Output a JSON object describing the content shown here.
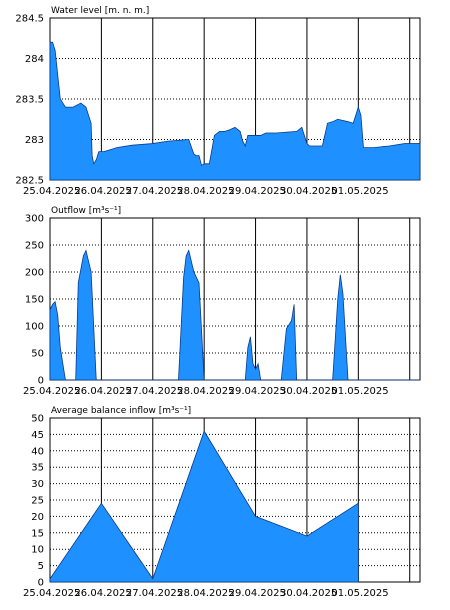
{
  "fill_color": "#1E90FF",
  "chart_data": [
    {
      "type": "area",
      "title": "Water level [m. n. m.]",
      "x_ticks": [
        "25.04.2025",
        "26.04.2025",
        "27.04.2025",
        "28.04.2025",
        "29.04.2025",
        "30.04.2025",
        "01.05.2025"
      ],
      "y_ticks": [
        "282.5",
        "283",
        "283.5",
        "284",
        "284.5"
      ],
      "ylim": [
        282.5,
        284.5
      ],
      "xlim": [
        0,
        7.2
      ],
      "grid": true,
      "x": [
        -0.2,
        0.05,
        0.1,
        0.2,
        0.3,
        0.45,
        0.6,
        0.7,
        0.8,
        0.82,
        0.85,
        0.9,
        0.95,
        1.05,
        1.3,
        1.6,
        2.0,
        2.3,
        2.7,
        2.8,
        2.85,
        2.9,
        2.95,
        3.0,
        3.1,
        3.2,
        3.3,
        3.4,
        3.5,
        3.6,
        3.7,
        3.75,
        3.8,
        3.85,
        4.0,
        4.1,
        4.2,
        4.4,
        4.8,
        4.9,
        5.0,
        5.05,
        5.1,
        5.3,
        5.4,
        5.5,
        5.6,
        5.8,
        5.9,
        6.0,
        6.05,
        6.1,
        6.3,
        6.6,
        6.9,
        7.0,
        7.2
      ],
      "y": [
        284.2,
        284.2,
        284.1,
        283.5,
        283.4,
        283.4,
        283.45,
        283.4,
        283.2,
        282.8,
        282.7,
        282.75,
        282.85,
        282.85,
        282.9,
        282.93,
        282.95,
        282.98,
        283.0,
        282.82,
        282.8,
        282.8,
        282.68,
        282.7,
        282.7,
        283.05,
        283.1,
        283.1,
        283.12,
        283.15,
        283.1,
        282.98,
        282.92,
        283.05,
        283.05,
        283.05,
        283.08,
        283.08,
        283.1,
        283.15,
        282.95,
        282.92,
        282.92,
        282.92,
        283.2,
        283.22,
        283.25,
        283.22,
        283.2,
        283.4,
        283.3,
        282.9,
        282.9,
        282.92,
        282.95,
        282.95,
        282.95
      ]
    },
    {
      "type": "area",
      "title": "Outflow [m³s⁻¹]",
      "x_ticks": [
        "25.04.2025",
        "26.04.2025",
        "27.04.2025",
        "28.04.2025",
        "29.04.2025",
        "30.04.2025",
        "01.05.2025"
      ],
      "y_ticks": [
        "0",
        "50",
        "100",
        "150",
        "200",
        "250",
        "300"
      ],
      "ylim": [
        0,
        300
      ],
      "xlim": [
        0,
        7.2
      ],
      "grid": true,
      "x": [
        -0.2,
        0.0,
        0.05,
        0.1,
        0.15,
        0.2,
        0.3,
        0.5,
        0.55,
        0.65,
        0.7,
        0.8,
        0.9,
        2.5,
        2.6,
        2.65,
        2.7,
        2.8,
        2.9,
        3.0,
        3.8,
        3.85,
        3.9,
        3.95,
        4.0,
        4.05,
        4.1,
        4.5,
        4.6,
        4.7,
        4.75,
        4.8,
        5.5,
        5.6,
        5.65,
        5.7,
        5.8,
        5.9,
        7.2
      ],
      "y": [
        0,
        130,
        140,
        145,
        120,
        60,
        0,
        0,
        180,
        230,
        240,
        200,
        0,
        0,
        190,
        230,
        240,
        200,
        180,
        0,
        0,
        60,
        80,
        30,
        20,
        30,
        0,
        0,
        95,
        110,
        140,
        0,
        0,
        150,
        195,
        160,
        0,
        0,
        0
      ]
    },
    {
      "type": "area",
      "title": "Average balance inflow  [m³s⁻¹]",
      "x_ticks": [
        "25.04.2025",
        "26.04.2025",
        "27.04.2025",
        "28.04.2025",
        "29.04.2025",
        "30.04.2025",
        "01.05.2025"
      ],
      "y_ticks": [
        "0",
        "5",
        "10",
        "15",
        "20",
        "25",
        "30",
        "35",
        "40",
        "45",
        "50"
      ],
      "ylim": [
        0,
        50
      ],
      "xlim": [
        0,
        7.2
      ],
      "grid": true,
      "x": [
        -0.2,
        0.0,
        1.0,
        2.0,
        3.0,
        4.0,
        5.0,
        6.0
      ],
      "y": [
        1,
        1,
        24,
        1,
        46,
        20,
        14,
        24
      ]
    }
  ]
}
